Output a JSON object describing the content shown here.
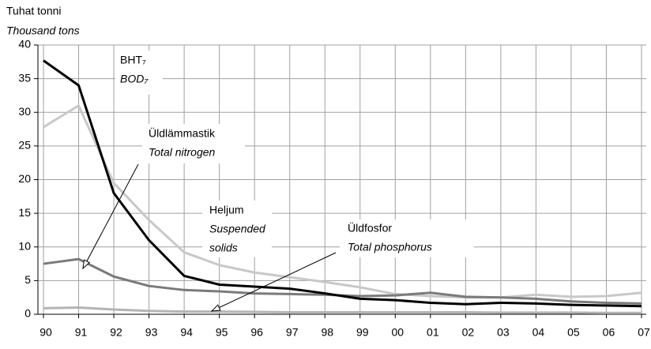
{
  "chart_data": {
    "type": "line",
    "y_title": [
      "Tuhat tonni",
      "Thousand tons"
    ],
    "categories": [
      "90",
      "91",
      "92",
      "93",
      "94",
      "95",
      "96",
      "97",
      "98",
      "99",
      "00",
      "01",
      "02",
      "03",
      "04",
      "05",
      "06",
      "07"
    ],
    "ylim": [
      0,
      40
    ],
    "yticks": [
      0,
      5,
      10,
      15,
      20,
      25,
      30,
      35,
      40
    ],
    "grid": true,
    "series": [
      {
        "label": [
          "Heljum",
          "Suspended",
          "solids"
        ],
        "color": "#c8c8c8",
        "values": [
          27.8,
          31,
          19.5,
          14,
          9.2,
          7.3,
          6.2,
          5.5,
          4.8,
          4.0,
          3.0,
          2.7,
          2.5,
          2.5,
          2.9,
          2.6,
          2.7,
          3.2
        ]
      },
      {
        "label": [
          "Üldfosfor",
          "Total phosphorus"
        ],
        "color": "#b4b4b4",
        "values": [
          0.9,
          1.0,
          0.7,
          0.5,
          0.4,
          0.4,
          0.35,
          0.3,
          0.3,
          0.3,
          0.3,
          0.3,
          0.3,
          0.25,
          0.25,
          0.25,
          0.2,
          0.2
        ]
      },
      {
        "label": [
          "Üldlämmastik",
          "Total nitrogen"
        ],
        "color": "#7a7a7a",
        "values": [
          7.5,
          8.2,
          5.6,
          4.2,
          3.6,
          3.4,
          3.1,
          3.0,
          2.9,
          2.7,
          2.8,
          3.2,
          2.6,
          2.5,
          2.3,
          1.9,
          1.7,
          1.6
        ]
      },
      {
        "label": [
          "BHT₇",
          "BOD₇"
        ],
        "color": "#000000",
        "values": [
          37.7,
          34,
          18,
          11,
          5.7,
          4.4,
          4.1,
          3.8,
          3.1,
          2.3,
          2.1,
          1.7,
          1.5,
          1.7,
          1.6,
          1.4,
          1.3,
          1.2
        ]
      }
    ]
  }
}
